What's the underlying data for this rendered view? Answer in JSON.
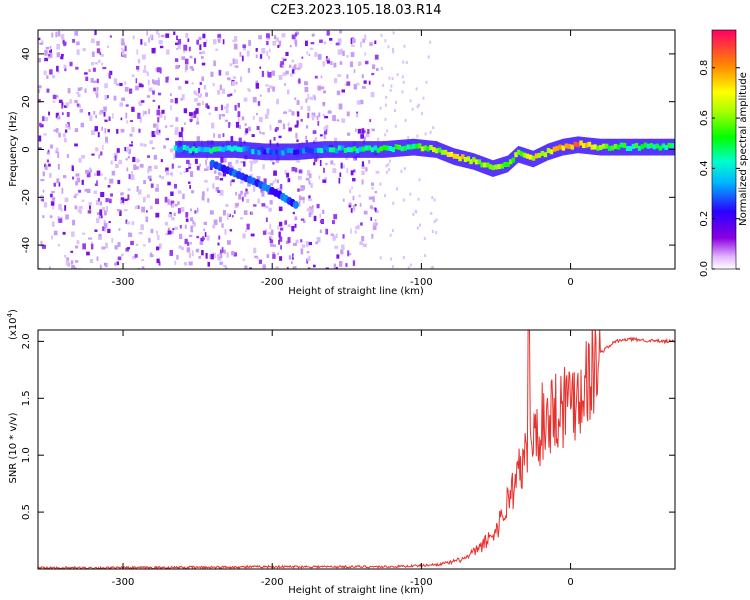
{
  "chart_data": [
    {
      "type": "heatmap",
      "title": "C2E3.2023.105.18.03.R14",
      "xlabel": "Height of straight line (km)",
      "ylabel": "Frequency (Hz)",
      "xlim": [
        -357,
        70
      ],
      "ylim": [
        -50,
        50
      ],
      "xticks": [
        {
          "value": -300,
          "label": "-300"
        },
        {
          "value": -200,
          "label": "-200"
        },
        {
          "value": -100,
          "label": "-100"
        },
        {
          "value": 0,
          "label": "0"
        }
      ],
      "yticks": [
        {
          "value": -40,
          "label": "-40"
        },
        {
          "value": -20,
          "label": "-20"
        },
        {
          "value": 0,
          "label": "0"
        },
        {
          "value": 20,
          "label": "20"
        },
        {
          "value": 40,
          "label": "40"
        }
      ],
      "noise_region_x": [
        -357,
        -130
      ],
      "main_trace": [
        {
          "x": -265,
          "f": 0,
          "a": 0.35
        },
        {
          "x": -245,
          "f": 0,
          "a": 0.45
        },
        {
          "x": -225,
          "f": 0,
          "a": 0.4
        },
        {
          "x": -205,
          "f": -1,
          "a": 0.3
        },
        {
          "x": -185,
          "f": -1,
          "a": 0.3
        },
        {
          "x": -165,
          "f": 0,
          "a": 0.4
        },
        {
          "x": -145,
          "f": 0,
          "a": 0.45
        },
        {
          "x": -125,
          "f": 0,
          "a": 0.5
        },
        {
          "x": -105,
          "f": 1,
          "a": 0.55
        },
        {
          "x": -90,
          "f": 0,
          "a": 0.65
        },
        {
          "x": -78,
          "f": -3,
          "a": 0.75
        },
        {
          "x": -65,
          "f": -5,
          "a": 0.7
        },
        {
          "x": -52,
          "f": -8,
          "a": 0.6
        },
        {
          "x": -42,
          "f": -6,
          "a": 0.55
        },
        {
          "x": -35,
          "f": -2,
          "a": 0.65
        },
        {
          "x": -25,
          "f": -4,
          "a": 0.7
        },
        {
          "x": -15,
          "f": -1,
          "a": 0.75
        },
        {
          "x": -5,
          "f": 1,
          "a": 0.8
        },
        {
          "x": 5,
          "f": 2,
          "a": 0.85
        },
        {
          "x": 20,
          "f": 1,
          "a": 0.6
        },
        {
          "x": 40,
          "f": 1,
          "a": 0.5
        },
        {
          "x": 60,
          "f": 1,
          "a": 0.5
        },
        {
          "x": 70,
          "f": 1,
          "a": 0.5
        }
      ],
      "diagonal_trace": [
        {
          "x": -240,
          "f": -6
        },
        {
          "x": -225,
          "f": -10
        },
        {
          "x": -210,
          "f": -14
        },
        {
          "x": -195,
          "f": -19
        },
        {
          "x": -182,
          "f": -24
        }
      ],
      "colorbar": {
        "label": "Normalized spectral amplitude",
        "min": 0.0,
        "max": 0.95,
        "ticks": [
          {
            "value": 0.0,
            "label": "0.0"
          },
          {
            "value": 0.2,
            "label": "0.2"
          },
          {
            "value": 0.4,
            "label": "0.4"
          },
          {
            "value": 0.6,
            "label": "0.6"
          },
          {
            "value": 0.8,
            "label": "0.8"
          }
        ]
      }
    },
    {
      "type": "line",
      "xlabel": "Height of straight line (km)",
      "ylabel": "SNR (10 * v/v)",
      "yscale_label": "(x10",
      "yscale_exp": "4",
      "yscale_close": ")",
      "xlim": [
        -357,
        70
      ],
      "ylim": [
        0,
        2.1
      ],
      "xticks": [
        {
          "value": -300,
          "label": "-300"
        },
        {
          "value": -200,
          "label": "-200"
        },
        {
          "value": -100,
          "label": "-100"
        },
        {
          "value": 0,
          "label": "0"
        }
      ],
      "yticks": [
        {
          "value": 0.5,
          "label": "0.5"
        },
        {
          "value": 1.0,
          "label": "1.0"
        },
        {
          "value": 1.5,
          "label": "1.5"
        },
        {
          "value": 2.0,
          "label": "2.0"
        }
      ],
      "color": "#e8302c",
      "series": [
        {
          "name": "SNR",
          "x": [
            -357,
            -300,
            -200,
            -120,
            -100,
            -90,
            -80,
            -70,
            -60,
            -50,
            -45,
            -40,
            -35,
            -30,
            -25,
            -20,
            -15,
            -10,
            -5,
            0,
            5,
            10,
            15,
            20,
            25,
            30,
            40,
            50,
            60,
            70
          ],
          "y": [
            0.01,
            0.01,
            0.02,
            0.02,
            0.03,
            0.04,
            0.06,
            0.1,
            0.2,
            0.35,
            0.5,
            0.7,
            0.85,
            1.0,
            1.15,
            1.3,
            1.4,
            1.45,
            1.5,
            1.55,
            1.6,
            1.7,
            1.8,
            1.9,
            1.95,
            2.0,
            2.02,
            2.01,
            2.0,
            2.0
          ]
        }
      ]
    }
  ]
}
